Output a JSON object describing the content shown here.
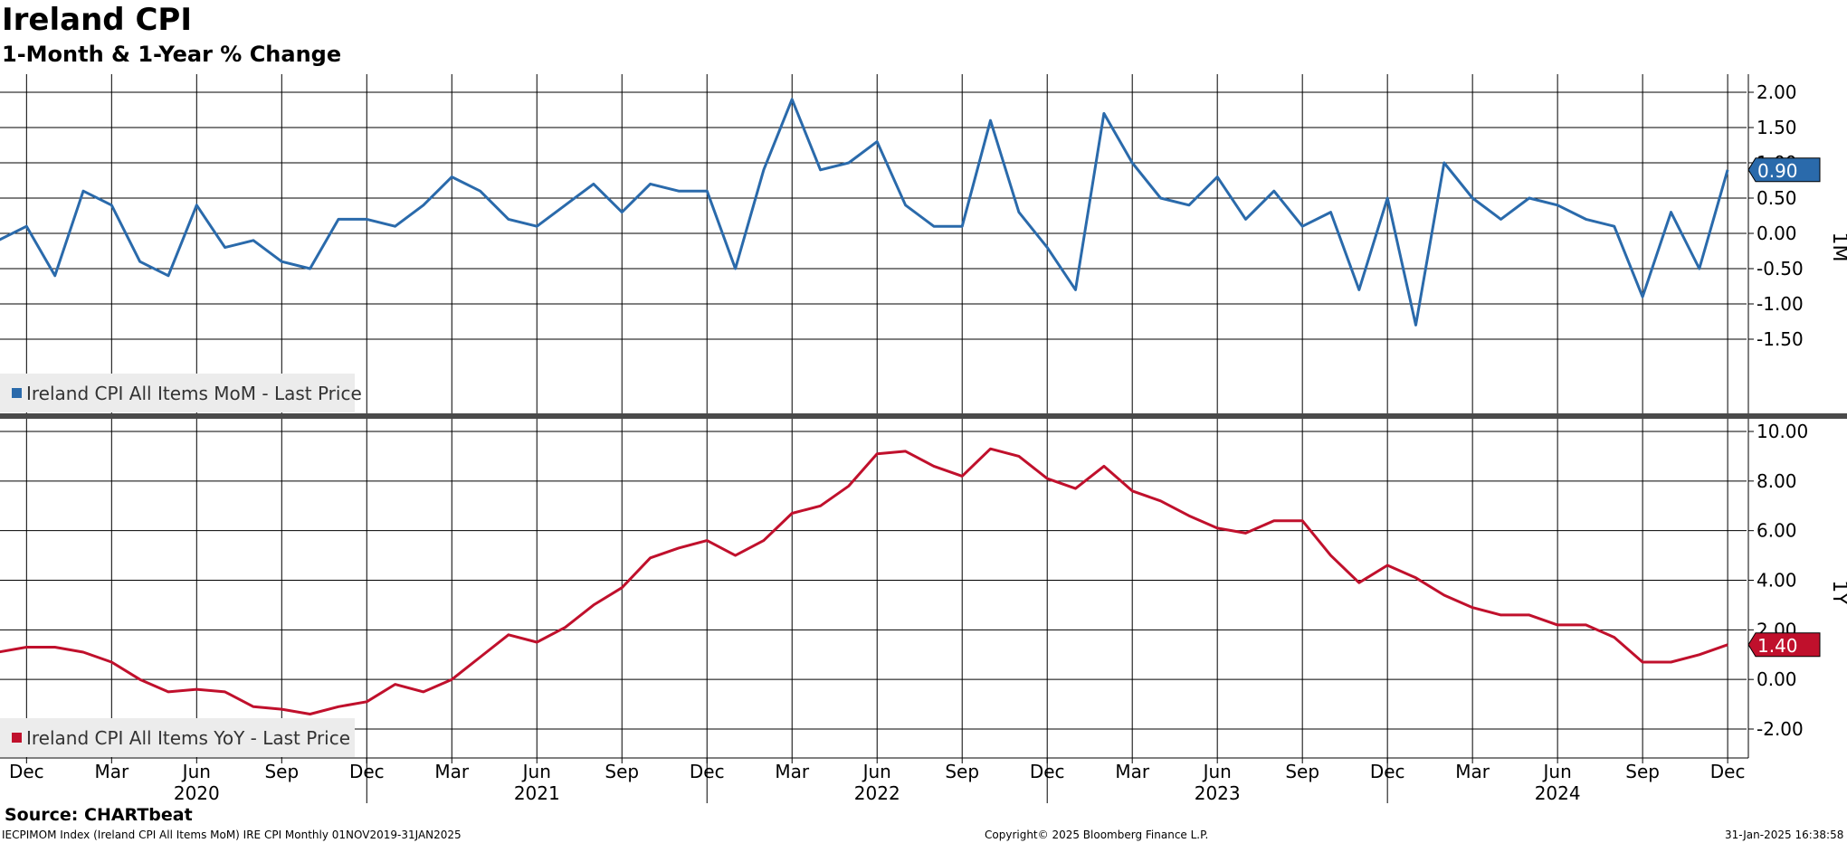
{
  "title": "Ireland CPI",
  "subtitle": "1-Month & 1-Year % Change",
  "source": "Source: CHARTbeat",
  "footer": {
    "left": "IECPIMOM Index (Ireland CPI All Items MoM) IRE CPI  Monthly 01NOV2019-31JAN2025",
    "center": "Copyright© 2025 Bloomberg Finance L.P.",
    "right": "31-Jan-2025 16:38:58"
  },
  "colors": {
    "mom": "#2a6aab",
    "yoy": "#c0102c"
  },
  "chart_data": [
    {
      "type": "line",
      "panel_label": "1M",
      "legend": "Ireland CPI All Items MoM - Last Price",
      "legend_position": "bottom-left",
      "grid": true,
      "ylim": [
        -1.75,
        2.2
      ],
      "yticks": [
        2.0,
        1.5,
        1.0,
        0.5,
        0.0,
        -0.5,
        -1.0,
        -1.5
      ],
      "ytick_labels": [
        "2.00",
        "1.50",
        "1.00",
        "0.50",
        "0.00",
        "-0.50",
        "-1.00",
        "-1.50"
      ],
      "last_value": "0.90",
      "x": [
        "2019-11",
        "2019-12",
        "2020-01",
        "2020-02",
        "2020-03",
        "2020-04",
        "2020-05",
        "2020-06",
        "2020-07",
        "2020-08",
        "2020-09",
        "2020-10",
        "2020-11",
        "2020-12",
        "2021-01",
        "2021-02",
        "2021-03",
        "2021-04",
        "2021-05",
        "2021-06",
        "2021-07",
        "2021-08",
        "2021-09",
        "2021-10",
        "2021-11",
        "2021-12",
        "2022-01",
        "2022-02",
        "2022-03",
        "2022-04",
        "2022-05",
        "2022-06",
        "2022-07",
        "2022-08",
        "2022-09",
        "2022-10",
        "2022-11",
        "2022-12",
        "2023-01",
        "2023-02",
        "2023-03",
        "2023-04",
        "2023-05",
        "2023-06",
        "2023-07",
        "2023-08",
        "2023-09",
        "2023-10",
        "2023-11",
        "2023-12",
        "2024-01",
        "2024-02",
        "2024-03",
        "2024-04",
        "2024-05",
        "2024-06",
        "2024-07",
        "2024-08",
        "2024-09",
        "2024-10",
        "2024-11",
        "2024-12"
      ],
      "values": [
        -0.1,
        0.1,
        -0.6,
        0.6,
        0.4,
        -0.4,
        -0.6,
        0.4,
        -0.2,
        -0.1,
        -0.4,
        -0.5,
        0.2,
        0.2,
        0.1,
        0.4,
        0.8,
        0.6,
        0.2,
        0.1,
        0.4,
        0.7,
        0.3,
        0.7,
        0.6,
        0.6,
        -0.5,
        0.9,
        1.9,
        0.9,
        1.0,
        1.3,
        0.4,
        0.1,
        0.1,
        1.6,
        0.3,
        -0.2,
        -0.8,
        1.7,
        1.0,
        0.5,
        0.4,
        0.8,
        0.2,
        0.6,
        0.1,
        0.3,
        -0.8,
        0.5,
        -1.3,
        1.0,
        0.5,
        0.2,
        0.5,
        0.4,
        0.2,
        0.1,
        -0.9,
        0.3,
        -0.5,
        0.9
      ]
    },
    {
      "type": "line",
      "panel_label": "1Y",
      "legend": "Ireland CPI All Items YoY - Last Price",
      "legend_position": "bottom-left",
      "grid": true,
      "ylim": [
        -3.2,
        10.4
      ],
      "yticks": [
        10.0,
        8.0,
        6.0,
        4.0,
        2.0,
        0.0,
        -2.0
      ],
      "ytick_labels": [
        "10.00",
        "8.00",
        "6.00",
        "4.00",
        "2.00",
        "0.00",
        "-2.00"
      ],
      "last_value": "1.40",
      "x": [
        "2019-11",
        "2019-12",
        "2020-01",
        "2020-02",
        "2020-03",
        "2020-04",
        "2020-05",
        "2020-06",
        "2020-07",
        "2020-08",
        "2020-09",
        "2020-10",
        "2020-11",
        "2020-12",
        "2021-01",
        "2021-02",
        "2021-03",
        "2021-04",
        "2021-05",
        "2021-06",
        "2021-07",
        "2021-08",
        "2021-09",
        "2021-10",
        "2021-11",
        "2021-12",
        "2022-01",
        "2022-02",
        "2022-03",
        "2022-04",
        "2022-05",
        "2022-06",
        "2022-07",
        "2022-08",
        "2022-09",
        "2022-10",
        "2022-11",
        "2022-12",
        "2023-01",
        "2023-02",
        "2023-03",
        "2023-04",
        "2023-05",
        "2023-06",
        "2023-07",
        "2023-08",
        "2023-09",
        "2023-10",
        "2023-11",
        "2023-12",
        "2024-01",
        "2024-02",
        "2024-03",
        "2024-04",
        "2024-05",
        "2024-06",
        "2024-07",
        "2024-08",
        "2024-09",
        "2024-10",
        "2024-11",
        "2024-12"
      ],
      "values": [
        1.1,
        1.3,
        1.3,
        1.1,
        0.7,
        0.0,
        -0.5,
        -0.4,
        -0.5,
        -1.1,
        -1.2,
        -1.4,
        -1.1,
        -0.9,
        -0.2,
        -0.5,
        0.0,
        0.9,
        1.8,
        1.5,
        2.1,
        3.0,
        3.7,
        4.9,
        5.3,
        5.6,
        5.0,
        5.6,
        6.7,
        7.0,
        7.8,
        9.1,
        9.2,
        8.6,
        8.2,
        9.3,
        9.0,
        8.1,
        7.7,
        8.6,
        7.6,
        7.2,
        6.6,
        6.1,
        5.9,
        6.4,
        6.4,
        5.0,
        3.9,
        4.6,
        4.1,
        3.4,
        2.9,
        2.6,
        2.6,
        2.2,
        2.2,
        1.7,
        0.7,
        0.7,
        1.0,
        1.4
      ]
    }
  ],
  "x_axis": {
    "month_labels": [
      "Dec",
      "Mar",
      "Jun",
      "Sep",
      "Dec",
      "Mar",
      "Jun",
      "Sep",
      "Dec",
      "Mar",
      "Jun",
      "Sep",
      "Dec",
      "Mar",
      "Jun",
      "Sep",
      "Dec",
      "Mar",
      "Jun",
      "Sep",
      "Dec"
    ],
    "years": [
      "2020",
      "2021",
      "2022",
      "2023",
      "2024"
    ]
  }
}
